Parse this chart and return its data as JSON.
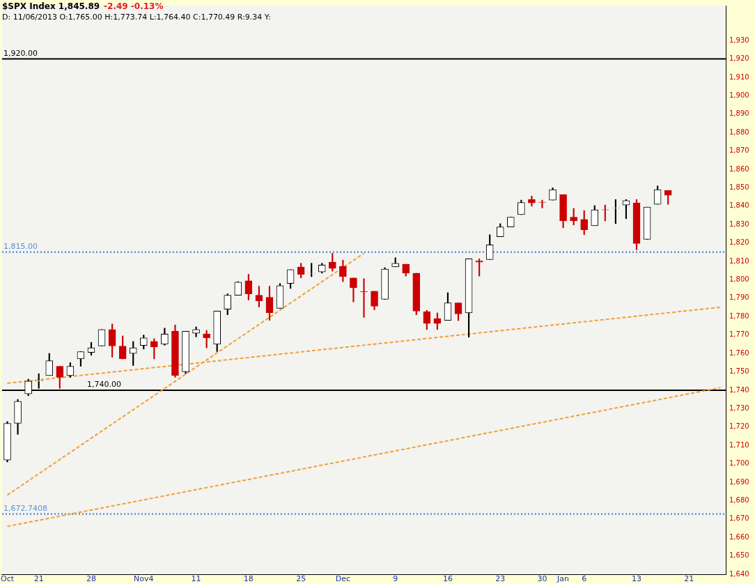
{
  "chart_data": {
    "type": "candlestick",
    "title": "$SPX Index 1,845.89",
    "subtitle": "D: 11/06/2013 O:1,765.00 H:1,773.74 L:1,764.40 C:1,770.49   R:9.34   Y:",
    "annotations": [
      "-2.49 -0.13%"
    ],
    "categories": [
      "Oct",
      null,
      null,
      "21",
      null,
      null,
      null,
      null,
      "28",
      null,
      null,
      null,
      null,
      "Nov4",
      null,
      null,
      null,
      null,
      "11",
      null,
      null,
      null,
      null,
      "18",
      null,
      null,
      null,
      null,
      "25",
      null,
      null,
      null,
      "Dec",
      null,
      null,
      null,
      null,
      "9",
      null,
      null,
      null,
      null,
      "16",
      null,
      null,
      null,
      null,
      "23",
      null,
      null,
      null,
      "30",
      null,
      "Jan",
      null,
      "6",
      null,
      null,
      null,
      null,
      "13",
      null,
      null,
      null,
      null,
      "21",
      null,
      null,
      null
    ],
    "ohlc": [
      [
        1702,
        1723,
        1701,
        1722
      ],
      [
        1722,
        1735,
        1716,
        1734
      ],
      [
        1738,
        1746,
        1737,
        1745
      ],
      [
        1745,
        1749,
        1741,
        1745.1
      ],
      [
        1748,
        1760,
        1748,
        1756
      ],
      [
        1753,
        1753,
        1741,
        1747
      ],
      [
        1748,
        1755,
        1747,
        1753
      ],
      [
        1757,
        1761,
        1753,
        1761
      ],
      [
        1760.5,
        1766,
        1759,
        1763
      ],
      [
        1764,
        1773,
        1764,
        1773
      ],
      [
        1773,
        1776,
        1758,
        1764
      ],
      [
        1764,
        1769.5,
        1757,
        1757
      ],
      [
        1760,
        1766.5,
        1753.4,
        1763
      ],
      [
        1764.3,
        1770,
        1762.4,
        1768.4
      ],
      [
        1766.5,
        1768,
        1757,
        1763.5
      ],
      [
        1765,
        1773.74,
        1764.4,
        1770.49
      ],
      [
        1772,
        1775.5,
        1747,
        1748
      ],
      [
        1750,
        1772,
        1749,
        1772
      ],
      [
        1771,
        1774.4,
        1769,
        1773
      ],
      [
        1770.6,
        1772.5,
        1763,
        1768.4
      ],
      [
        1765,
        1783,
        1761,
        1783
      ],
      [
        1784,
        1792.4,
        1781,
        1791.6
      ],
      [
        1791.6,
        1799,
        1791.6,
        1798.7
      ],
      [
        1799.5,
        1803,
        1789,
        1792.4
      ],
      [
        1791.6,
        1796.5,
        1785.2,
        1788.6
      ],
      [
        1790.5,
        1796.5,
        1778,
        1782
      ],
      [
        1784.5,
        1798,
        1784.5,
        1796.8
      ],
      [
        1798,
        1805.5,
        1795.3,
        1805.5
      ],
      [
        1807,
        1809,
        1801,
        1803
      ],
      [
        1803.5,
        1809,
        1801.7,
        1803.6
      ],
      [
        1804.3,
        1809,
        1803.6,
        1808
      ],
      [
        1809.6,
        1814.4,
        1804.7,
        1806.2
      ],
      [
        1807.3,
        1810.7,
        1799,
        1801.7
      ],
      [
        1801,
        1801,
        1788,
        1795.7
      ],
      [
        1793.6,
        1800.6,
        1779.6,
        1793.5
      ],
      [
        1793.8,
        1793.8,
        1783.7,
        1785.6
      ],
      [
        1789.4,
        1806.6,
        1789.4,
        1805.8
      ],
      [
        1807,
        1812,
        1807,
        1809
      ],
      [
        1808.5,
        1808.5,
        1802,
        1803.6
      ],
      [
        1803.6,
        1803.6,
        1781,
        1783
      ],
      [
        1782.6,
        1783.4,
        1773,
        1776.3
      ],
      [
        1778.9,
        1782,
        1773,
        1776.3
      ],
      [
        1778,
        1793,
        1778,
        1787.5
      ],
      [
        1787.5,
        1787.5,
        1777.8,
        1781.5
      ],
      [
        1782,
        1811.4,
        1768.8,
        1811.4
      ],
      [
        1810.3,
        1811.4,
        1802,
        1809.6
      ],
      [
        1811,
        1824.5,
        1811,
        1819
      ],
      [
        1823.4,
        1830.5,
        1823.4,
        1828.7
      ],
      [
        1828.7,
        1834,
        1828.7,
        1834
      ],
      [
        1835.4,
        1843.3,
        1835.4,
        1842
      ],
      [
        1843.6,
        1845.5,
        1840,
        1841.8
      ],
      [
        1842.2,
        1843.3,
        1839,
        1842.1
      ],
      [
        1843.3,
        1850,
        1843.3,
        1849
      ],
      [
        1846.3,
        1846.3,
        1828.3,
        1832
      ],
      [
        1834,
        1838.8,
        1829.8,
        1832
      ],
      [
        1832.8,
        1837.6,
        1824.5,
        1827.2
      ],
      [
        1829.4,
        1840.3,
        1829.4,
        1838
      ],
      [
        1838.1,
        1840.6,
        1832,
        1838
      ],
      [
        1839,
        1843.6,
        1830.5,
        1839.1
      ],
      [
        1840.6,
        1843.6,
        1833.2,
        1843
      ],
      [
        1841.8,
        1843.6,
        1816.3,
        1819.7
      ],
      [
        1822,
        1839.5,
        1822,
        1839.5
      ],
      [
        1841,
        1851,
        1841,
        1849
      ],
      [
        1848.5,
        1848.5,
        1841,
        1845.9
      ],
      null,
      null,
      null,
      null,
      null
    ],
    "series": [
      {
        "type": "line",
        "color": "#f0a030",
        "values": [
          1683,
          null,
          null,
          null,
          null,
          null,
          null,
          null,
          null,
          null,
          null,
          null,
          null,
          null,
          null,
          null,
          null,
          null,
          null,
          null,
          null,
          null,
          null,
          null,
          null,
          null,
          null,
          null,
          null,
          null,
          null,
          null,
          null,
          null,
          1814.4,
          null,
          null,
          null,
          null,
          null,
          null,
          null,
          null,
          null,
          null,
          null,
          null,
          null,
          null,
          null,
          null,
          null,
          null,
          null,
          null,
          null,
          null,
          null,
          null,
          null,
          null,
          null,
          null,
          null,
          null,
          null,
          null,
          null,
          null
        ]
      },
      {
        "type": "line",
        "color": "#f0a030",
        "values": [
          1743.8,
          null,
          null,
          null,
          null,
          null,
          null,
          null,
          null,
          null,
          null,
          null,
          null,
          null,
          null,
          null,
          null,
          null,
          null,
          null,
          null,
          null,
          null,
          null,
          null,
          null,
          null,
          null,
          null,
          null,
          null,
          null,
          null,
          null,
          null,
          null,
          null,
          null,
          null,
          null,
          null,
          null,
          null,
          null,
          null,
          null,
          null,
          null,
          null,
          null,
          null,
          null,
          null,
          null,
          null,
          null,
          null,
          null,
          null,
          null,
          null,
          null,
          null,
          null,
          null,
          null,
          null,
          null,
          1785.1
        ]
      },
      {
        "type": "line",
        "color": "#f0a030",
        "values": [
          1666,
          null,
          null,
          null,
          null,
          null,
          null,
          null,
          null,
          null,
          null,
          null,
          null,
          null,
          null,
          null,
          null,
          null,
          null,
          null,
          null,
          null,
          null,
          null,
          null,
          null,
          null,
          null,
          null,
          null,
          null,
          null,
          null,
          null,
          null,
          null,
          null,
          null,
          null,
          null,
          null,
          null,
          null,
          null,
          null,
          null,
          null,
          null,
          null,
          null,
          null,
          null,
          null,
          null,
          null,
          null,
          null,
          null,
          null,
          null,
          null,
          null,
          null,
          null,
          null,
          null,
          null,
          null,
          1741.4
        ]
      }
    ],
    "ylim": [
      1640,
      1949
    ],
    "yticks": [
      {
        "value": 1640,
        "label": "1,640"
      },
      {
        "value": 1650,
        "label": "1,650"
      },
      {
        "value": 1660,
        "label": "1,660"
      },
      {
        "value": 1670,
        "label": "1,670"
      },
      {
        "value": 1680,
        "label": "1,680"
      },
      {
        "value": 1690,
        "label": "1,690"
      },
      {
        "value": 1700,
        "label": "1,700"
      },
      {
        "value": 1710,
        "label": "1,710"
      },
      {
        "value": 1720,
        "label": "1,720"
      },
      {
        "value": 1730,
        "label": "1,730"
      },
      {
        "value": 1740,
        "label": "1,740"
      },
      {
        "value": 1750,
        "label": "1,750"
      },
      {
        "value": 1760,
        "label": "1,760"
      },
      {
        "value": 1770,
        "label": "1,770"
      },
      {
        "value": 1780,
        "label": "1,780"
      },
      {
        "value": 1790,
        "label": "1,790"
      },
      {
        "value": 1800,
        "label": "1,800"
      },
      {
        "value": 1810,
        "label": "1,810"
      },
      {
        "value": 1820,
        "label": "1,820"
      },
      {
        "value": 1830,
        "label": "1,830"
      },
      {
        "value": 1840,
        "label": "1,840"
      },
      {
        "value": 1850,
        "label": "1,850"
      },
      {
        "value": 1860,
        "label": "1,860"
      },
      {
        "value": 1870,
        "label": "1,870"
      },
      {
        "value": 1880,
        "label": "1,880"
      },
      {
        "value": 1890,
        "label": "1,890"
      },
      {
        "value": 1900,
        "label": "1,900"
      },
      {
        "value": 1910,
        "label": "1,910"
      },
      {
        "value": 1920,
        "label": "1,920"
      },
      {
        "value": 1930,
        "label": "1,930"
      }
    ],
    "ref_lines": [
      {
        "axis": "y",
        "value": 1920,
        "label": "1,920.00",
        "color": "#000000",
        "line_style": "solid"
      },
      {
        "axis": "y",
        "value": 1740,
        "label": "1,740.00",
        "color": "#000000",
        "line_style": "solid"
      },
      {
        "axis": "y",
        "value": 1815,
        "label": "1,815.00",
        "color": "#5b8fd6",
        "line_style": "dotted"
      },
      {
        "axis": "y",
        "value": 1672.7408,
        "label": "1,672.7408",
        "color": "#5b8fd6",
        "line_style": "dotted"
      }
    ],
    "legend": false,
    "grid": false,
    "marker": "none",
    "line_style": "dashed"
  }
}
